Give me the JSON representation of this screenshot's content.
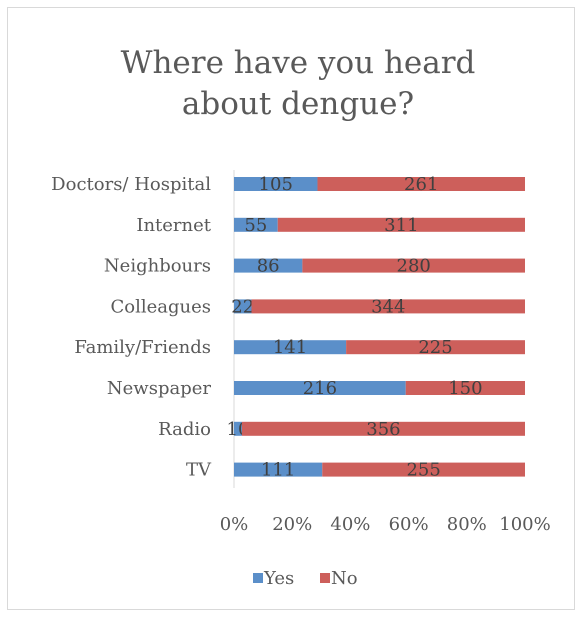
{
  "chart_data": {
    "type": "bar",
    "orientation": "horizontal",
    "stacking": "percent",
    "title": "Where have you heard about dengue?",
    "title_lines": [
      "Where have you heard",
      "about dengue?"
    ],
    "categories": [
      "Doctors/ Hospital",
      "Internet",
      "Neighbours",
      "Colleagues",
      "Family/Friends",
      "Newspaper",
      "Radio",
      "TV"
    ],
    "series": [
      {
        "name": "Yes",
        "color": "#5b8fc9",
        "values": [
          105,
          55,
          86,
          22,
          141,
          216,
          10,
          111
        ]
      },
      {
        "name": "No",
        "color": "#cd5f5b",
        "values": [
          261,
          311,
          280,
          344,
          225,
          150,
          356,
          255
        ]
      }
    ],
    "x_ticks": [
      "0%",
      "20%",
      "40%",
      "60%",
      "80%",
      "100%"
    ],
    "xlim": [
      0,
      1
    ],
    "grid": false,
    "data_labels": true,
    "legend": {
      "position": "bottom",
      "items": [
        "Yes",
        "No"
      ]
    }
  }
}
